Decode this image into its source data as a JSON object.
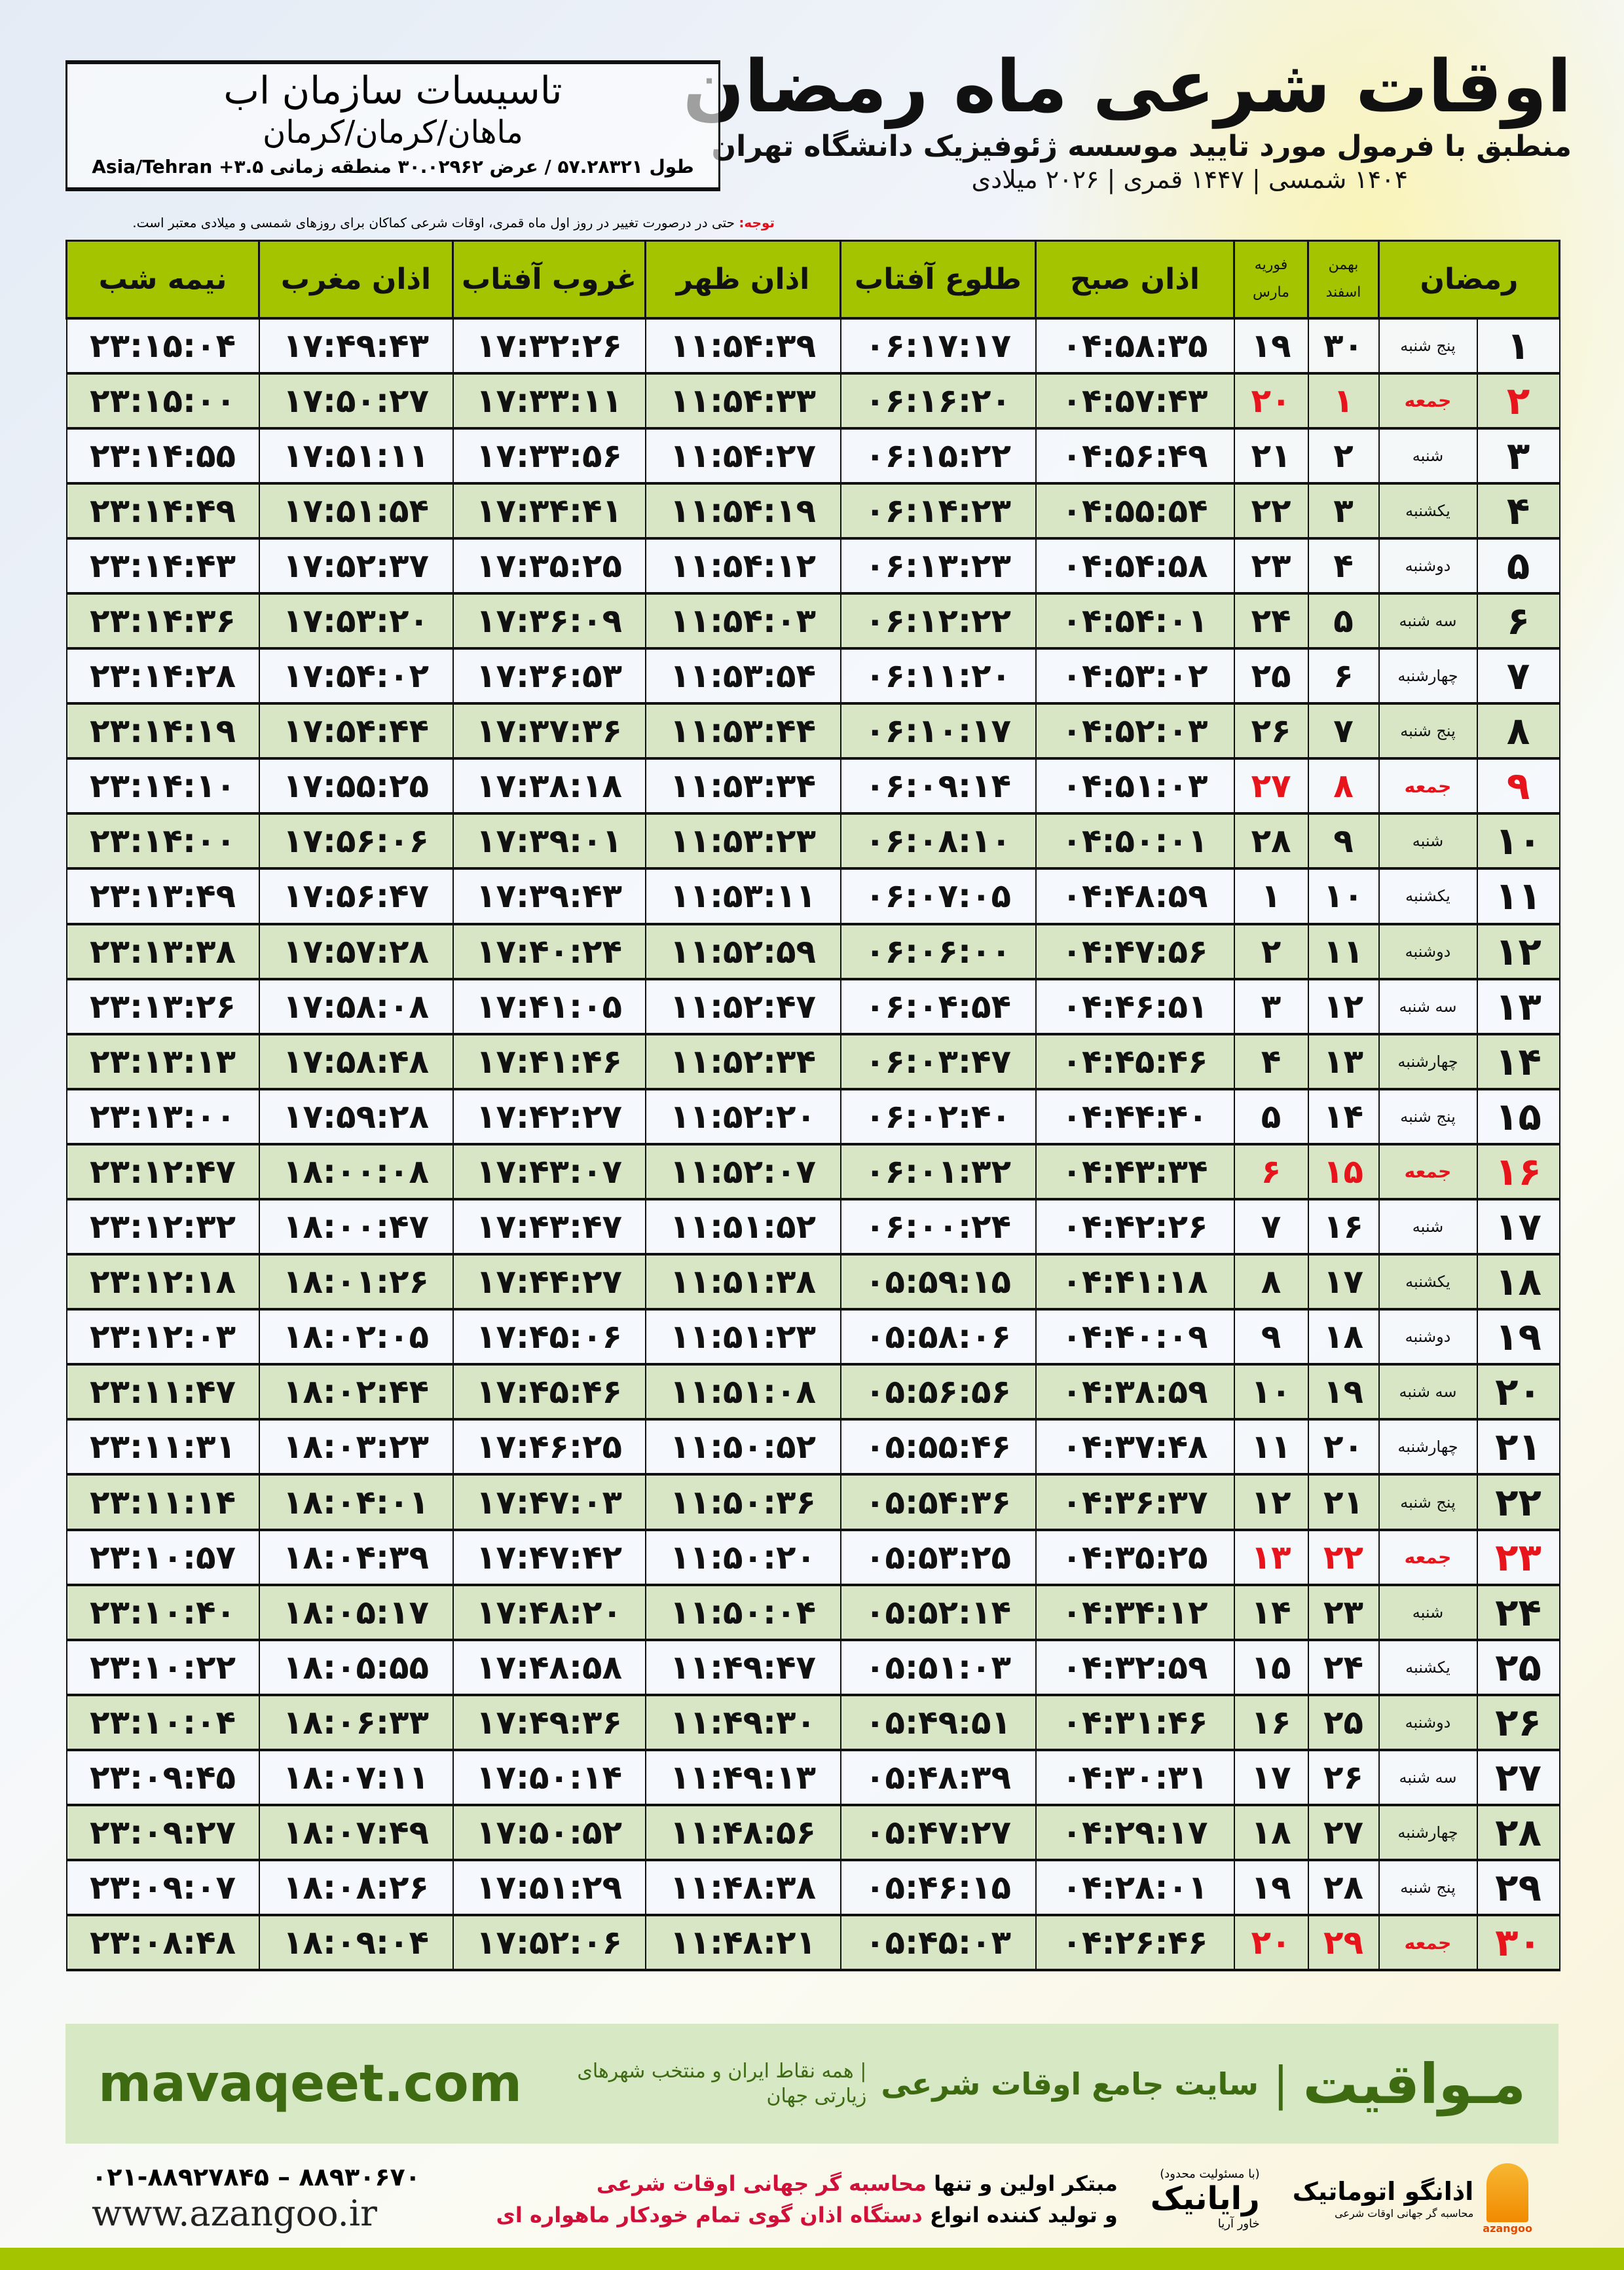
{
  "header": {
    "title": "اوقات شرعی ماه رمضان",
    "subtitle": "منطبق با فرمول مورد تایید موسسه ژئوفیزیک دانشگاه تهران",
    "years": "۱۴۰۴ شمسی | ۱۴۴۷ قمری | ۲۰۲۶ میلادی"
  },
  "location": {
    "name": "تاسیسات سازمان اب",
    "city": "ماهان/کرمان/کرمان",
    "coords": "طول ۵۷.۲۸۳۲۱ / عرض ۳۰.۰۲۹۶۲ منطقه زمانی ۳.۵+ Asia/Tehran"
  },
  "note": {
    "label": "توجه:",
    "text": " حتی در درصورت تغییر در روز اول ماه قمری، اوقات شرعی کماکان برای روزهای شمسی و میلادی معتبر است."
  },
  "table": {
    "headers": {
      "ramadan": "رمضان",
      "bahman": "بهمن",
      "esfand": "اسفند",
      "feb": "فوریه",
      "march": "مارس",
      "sobh": "اذان صبح",
      "tolu": "طلوع آفتاب",
      "zohr": "اذان ظهر",
      "ghorub": "غروب آفتاب",
      "maghrib": "اذان مغرب",
      "nime": "نیمه شب"
    },
    "holiday_color": "#e8141c",
    "rows": [
      [
        "۱",
        "پنج شنبه",
        "۳۰",
        "۱۹",
        "۰۴:۵۸:۳۵",
        "۰۶:۱۷:۱۷",
        "۱۱:۵۴:۳۹",
        "۱۷:۳۲:۲۶",
        "۱۷:۴۹:۴۳",
        "۲۳:۱۵:۰۴"
      ],
      [
        "۲",
        "جمعه",
        "۱",
        "۲۰",
        "۰۴:۵۷:۴۳",
        "۰۶:۱۶:۲۰",
        "۱۱:۵۴:۳۳",
        "۱۷:۳۳:۱۱",
        "۱۷:۵۰:۲۷",
        "۲۳:۱۵:۰۰"
      ],
      [
        "۳",
        "شنبه",
        "۲",
        "۲۱",
        "۰۴:۵۶:۴۹",
        "۰۶:۱۵:۲۲",
        "۱۱:۵۴:۲۷",
        "۱۷:۳۳:۵۶",
        "۱۷:۵۱:۱۱",
        "۲۳:۱۴:۵۵"
      ],
      [
        "۴",
        "یکشنبه",
        "۳",
        "۲۲",
        "۰۴:۵۵:۵۴",
        "۰۶:۱۴:۲۳",
        "۱۱:۵۴:۱۹",
        "۱۷:۳۴:۴۱",
        "۱۷:۵۱:۵۴",
        "۲۳:۱۴:۴۹"
      ],
      [
        "۵",
        "دوشنبه",
        "۴",
        "۲۳",
        "۰۴:۵۴:۵۸",
        "۰۶:۱۳:۲۳",
        "۱۱:۵۴:۱۲",
        "۱۷:۳۵:۲۵",
        "۱۷:۵۲:۳۷",
        "۲۳:۱۴:۴۳"
      ],
      [
        "۶",
        "سه شنبه",
        "۵",
        "۲۴",
        "۰۴:۵۴:۰۱",
        "۰۶:۱۲:۲۲",
        "۱۱:۵۴:۰۳",
        "۱۷:۳۶:۰۹",
        "۱۷:۵۳:۲۰",
        "۲۳:۱۴:۳۶"
      ],
      [
        "۷",
        "چهارشنبه",
        "۶",
        "۲۵",
        "۰۴:۵۳:۰۲",
        "۰۶:۱۱:۲۰",
        "۱۱:۵۳:۵۴",
        "۱۷:۳۶:۵۳",
        "۱۷:۵۴:۰۲",
        "۲۳:۱۴:۲۸"
      ],
      [
        "۸",
        "پنج شنبه",
        "۷",
        "۲۶",
        "۰۴:۵۲:۰۳",
        "۰۶:۱۰:۱۷",
        "۱۱:۵۳:۴۴",
        "۱۷:۳۷:۳۶",
        "۱۷:۵۴:۴۴",
        "۲۳:۱۴:۱۹"
      ],
      [
        "۹",
        "جمعه",
        "۸",
        "۲۷",
        "۰۴:۵۱:۰۳",
        "۰۶:۰۹:۱۴",
        "۱۱:۵۳:۳۴",
        "۱۷:۳۸:۱۸",
        "۱۷:۵۵:۲۵",
        "۲۳:۱۴:۱۰"
      ],
      [
        "۱۰",
        "شنبه",
        "۹",
        "۲۸",
        "۰۴:۵۰:۰۱",
        "۰۶:۰۸:۱۰",
        "۱۱:۵۳:۲۳",
        "۱۷:۳۹:۰۱",
        "۱۷:۵۶:۰۶",
        "۲۳:۱۴:۰۰"
      ],
      [
        "۱۱",
        "یکشنبه",
        "۱۰",
        "۱",
        "۰۴:۴۸:۵۹",
        "۰۶:۰۷:۰۵",
        "۱۱:۵۳:۱۱",
        "۱۷:۳۹:۴۳",
        "۱۷:۵۶:۴۷",
        "۲۳:۱۳:۴۹"
      ],
      [
        "۱۲",
        "دوشنبه",
        "۱۱",
        "۲",
        "۰۴:۴۷:۵۶",
        "۰۶:۰۶:۰۰",
        "۱۱:۵۲:۵۹",
        "۱۷:۴۰:۲۴",
        "۱۷:۵۷:۲۸",
        "۲۳:۱۳:۳۸"
      ],
      [
        "۱۳",
        "سه شنبه",
        "۱۲",
        "۳",
        "۰۴:۴۶:۵۱",
        "۰۶:۰۴:۵۴",
        "۱۱:۵۲:۴۷",
        "۱۷:۴۱:۰۵",
        "۱۷:۵۸:۰۸",
        "۲۳:۱۳:۲۶"
      ],
      [
        "۱۴",
        "چهارشنبه",
        "۱۳",
        "۴",
        "۰۴:۴۵:۴۶",
        "۰۶:۰۳:۴۷",
        "۱۱:۵۲:۳۴",
        "۱۷:۴۱:۴۶",
        "۱۷:۵۸:۴۸",
        "۲۳:۱۳:۱۳"
      ],
      [
        "۱۵",
        "پنج شنبه",
        "۱۴",
        "۵",
        "۰۴:۴۴:۴۰",
        "۰۶:۰۲:۴۰",
        "۱۱:۵۲:۲۰",
        "۱۷:۴۲:۲۷",
        "۱۷:۵۹:۲۸",
        "۲۳:۱۳:۰۰"
      ],
      [
        "۱۶",
        "جمعه",
        "۱۵",
        "۶",
        "۰۴:۴۳:۳۴",
        "۰۶:۰۱:۳۲",
        "۱۱:۵۲:۰۷",
        "۱۷:۴۳:۰۷",
        "۱۸:۰۰:۰۸",
        "۲۳:۱۲:۴۷"
      ],
      [
        "۱۷",
        "شنبه",
        "۱۶",
        "۷",
        "۰۴:۴۲:۲۶",
        "۰۶:۰۰:۲۴",
        "۱۱:۵۱:۵۲",
        "۱۷:۴۳:۴۷",
        "۱۸:۰۰:۴۷",
        "۲۳:۱۲:۳۲"
      ],
      [
        "۱۸",
        "یکشنبه",
        "۱۷",
        "۸",
        "۰۴:۴۱:۱۸",
        "۰۵:۵۹:۱۵",
        "۱۱:۵۱:۳۸",
        "۱۷:۴۴:۲۷",
        "۱۸:۰۱:۲۶",
        "۲۳:۱۲:۱۸"
      ],
      [
        "۱۹",
        "دوشنبه",
        "۱۸",
        "۹",
        "۰۴:۴۰:۰۹",
        "۰۵:۵۸:۰۶",
        "۱۱:۵۱:۲۳",
        "۱۷:۴۵:۰۶",
        "۱۸:۰۲:۰۵",
        "۲۳:۱۲:۰۳"
      ],
      [
        "۲۰",
        "سه شنبه",
        "۱۹",
        "۱۰",
        "۰۴:۳۸:۵۹",
        "۰۵:۵۶:۵۶",
        "۱۱:۵۱:۰۸",
        "۱۷:۴۵:۴۶",
        "۱۸:۰۲:۴۴",
        "۲۳:۱۱:۴۷"
      ],
      [
        "۲۱",
        "چهارشنبه",
        "۲۰",
        "۱۱",
        "۰۴:۳۷:۴۸",
        "۰۵:۵۵:۴۶",
        "۱۱:۵۰:۵۲",
        "۱۷:۴۶:۲۵",
        "۱۸:۰۳:۲۳",
        "۲۳:۱۱:۳۱"
      ],
      [
        "۲۲",
        "پنج شنبه",
        "۲۱",
        "۱۲",
        "۰۴:۳۶:۳۷",
        "۰۵:۵۴:۳۶",
        "۱۱:۵۰:۳۶",
        "۱۷:۴۷:۰۳",
        "۱۸:۰۴:۰۱",
        "۲۳:۱۱:۱۴"
      ],
      [
        "۲۳",
        "جمعه",
        "۲۲",
        "۱۳",
        "۰۴:۳۵:۲۵",
        "۰۵:۵۳:۲۵",
        "۱۱:۵۰:۲۰",
        "۱۷:۴۷:۴۲",
        "۱۸:۰۴:۳۹",
        "۲۳:۱۰:۵۷"
      ],
      [
        "۲۴",
        "شنبه",
        "۲۳",
        "۱۴",
        "۰۴:۳۴:۱۲",
        "۰۵:۵۲:۱۴",
        "۱۱:۵۰:۰۴",
        "۱۷:۴۸:۲۰",
        "۱۸:۰۵:۱۷",
        "۲۳:۱۰:۴۰"
      ],
      [
        "۲۵",
        "یکشنبه",
        "۲۴",
        "۱۵",
        "۰۴:۳۲:۵۹",
        "۰۵:۵۱:۰۳",
        "۱۱:۴۹:۴۷",
        "۱۷:۴۸:۵۸",
        "۱۸:۰۵:۵۵",
        "۲۳:۱۰:۲۲"
      ],
      [
        "۲۶",
        "دوشنبه",
        "۲۵",
        "۱۶",
        "۰۴:۳۱:۴۶",
        "۰۵:۴۹:۵۱",
        "۱۱:۴۹:۳۰",
        "۱۷:۴۹:۳۶",
        "۱۸:۰۶:۳۳",
        "۲۳:۱۰:۰۴"
      ],
      [
        "۲۷",
        "سه شنبه",
        "۲۶",
        "۱۷",
        "۰۴:۳۰:۳۱",
        "۰۵:۴۸:۳۹",
        "۱۱:۴۹:۱۳",
        "۱۷:۵۰:۱۴",
        "۱۸:۰۷:۱۱",
        "۲۳:۰۹:۴۵"
      ],
      [
        "۲۸",
        "چهارشنبه",
        "۲۷",
        "۱۸",
        "۰۴:۲۹:۱۷",
        "۰۵:۴۷:۲۷",
        "۱۱:۴۸:۵۶",
        "۱۷:۵۰:۵۲",
        "۱۸:۰۷:۴۹",
        "۲۳:۰۹:۲۷"
      ],
      [
        "۲۹",
        "پنج شنبه",
        "۲۸",
        "۱۹",
        "۰۴:۲۸:۰۱",
        "۰۵:۴۶:۱۵",
        "۱۱:۴۸:۳۸",
        "۱۷:۵۱:۲۹",
        "۱۸:۰۸:۲۶",
        "۲۳:۰۹:۰۷"
      ],
      [
        "۳۰",
        "جمعه",
        "۲۹",
        "۲۰",
        "۰۴:۲۶:۴۶",
        "۰۵:۴۵:۰۳",
        "۱۱:۴۸:۲۱",
        "۱۷:۵۲:۰۶",
        "۱۸:۰۹:۰۴",
        "۲۳:۰۸:۴۸"
      ]
    ]
  },
  "ad": {
    "brand": "مـواقیت",
    "sep": "|",
    "desc": "سایت جامع اوقات شرعی",
    "sub": "| همه نقاط ایران و منتخب شهرهای زیارتی جهان",
    "url": "mavaqeet.com",
    "color": "#3e6b12"
  },
  "footer": {
    "phone": "۰۲۱-۸۸۹۲۷۸۴۵ – ۸۸۹۳۰۶۷۰",
    "web": "www.azangoo.ir",
    "line1_a": "مبتکر اولین و تنها ",
    "line1_b": "محاسبه گر جهانی اوقات شرعی",
    "line2_a": "و تولید کننده انواع ",
    "line2_b": "دستگاه اذان گوی تمام خودکار ماهواره ای",
    "rayanik_tag": "(با مسئولیت محدود)",
    "rayanik": "رایانیک",
    "rayanik_sub": "خاور آریا",
    "azangoo_name": "اذانگو اتوماتیک",
    "azangoo_tag": "محاسبه گر جهانی اوقات شرعی",
    "azangoo_en": "azangoo"
  }
}
